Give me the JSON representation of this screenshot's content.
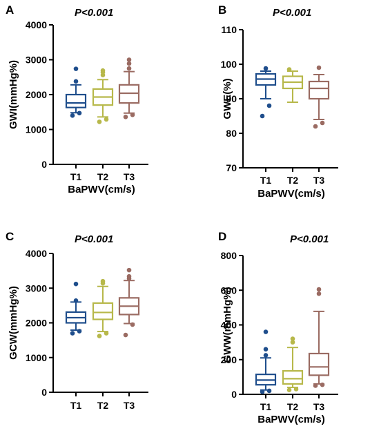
{
  "chart_data": [
    {
      "type": "box",
      "panel_label": "A",
      "title": "P<0.001",
      "ylabel": "GWI(mmHg%)",
      "xlabel": "BaPWV(cm/s)",
      "ylim": [
        0,
        4000
      ],
      "yticks": [
        0,
        1000,
        2000,
        3000,
        4000
      ],
      "categories": [
        "T1",
        "T2",
        "T3"
      ],
      "boxes": [
        {
          "name": "T1",
          "color": "#1f4e8c",
          "whisker_low": 1480,
          "q1": 1630,
          "median": 1760,
          "q3": 2000,
          "whisker_high": 2280,
          "outliers": [
            1400,
            1470,
            2380,
            2740
          ]
        },
        {
          "name": "T2",
          "color": "#b7b84a",
          "whisker_low": 1360,
          "q1": 1700,
          "median": 1930,
          "q3": 2160,
          "whisker_high": 2430,
          "outliers": [
            1220,
            1290,
            2560,
            2640,
            2690
          ]
        },
        {
          "name": "T3",
          "color": "#9a6b62",
          "whisker_low": 1470,
          "q1": 1760,
          "median": 2040,
          "q3": 2280,
          "whisker_high": 2660,
          "outliers": [
            1360,
            1420,
            2750,
            2890,
            3000
          ]
        }
      ]
    },
    {
      "type": "box",
      "panel_label": "B",
      "title": "P<0.001",
      "ylabel": "GWE(%)",
      "xlabel": "BaPWV(cm/s)",
      "ylim": [
        70,
        110
      ],
      "yticks": [
        70,
        80,
        90,
        100,
        110
      ],
      "categories": [
        "T1",
        "T2",
        "T3"
      ],
      "boxes": [
        {
          "name": "T1",
          "color": "#1f4e8c",
          "whisker_low": 90,
          "q1": 94,
          "median": 95.7,
          "q3": 97.2,
          "whisker_high": 98,
          "outliers": [
            85,
            88,
            98.8
          ]
        },
        {
          "name": "T2",
          "color": "#b7b84a",
          "whisker_low": 89,
          "q1": 93,
          "median": 94.8,
          "q3": 96.5,
          "whisker_high": 98,
          "outliers": [
            98.5
          ]
        },
        {
          "name": "T3",
          "color": "#9a6b62",
          "whisker_low": 84,
          "q1": 90,
          "median": 93,
          "q3": 95,
          "whisker_high": 97,
          "outliers": [
            82,
            83,
            99
          ]
        }
      ]
    },
    {
      "type": "box",
      "panel_label": "C",
      "title": "P<0.001",
      "ylabel": "GCW(mmHg%)",
      "xlabel": "",
      "ylim": [
        0,
        4000
      ],
      "yticks": [
        0,
        1000,
        2000,
        3000,
        4000
      ],
      "categories": [
        "T1",
        "T2",
        "T3"
      ],
      "boxes": [
        {
          "name": "T1",
          "color": "#1f4e8c",
          "whisker_low": 1790,
          "q1": 2000,
          "median": 2150,
          "q3": 2310,
          "whisker_high": 2600,
          "outliers": [
            1700,
            1760,
            2640,
            3120
          ]
        },
        {
          "name": "T2",
          "color": "#b7b84a",
          "whisker_low": 1750,
          "q1": 2100,
          "median": 2300,
          "q3": 2570,
          "whisker_high": 3050,
          "outliers": [
            1620,
            1700,
            3140,
            3200
          ]
        },
        {
          "name": "T3",
          "color": "#9a6b62",
          "whisker_low": 1980,
          "q1": 2240,
          "median": 2480,
          "q3": 2720,
          "whisker_high": 3220,
          "outliers": [
            1650,
            1950,
            3280,
            3340,
            3520
          ]
        }
      ]
    },
    {
      "type": "box",
      "panel_label": "D",
      "title": "P<0.001",
      "ylabel": "GWW(mmHg%)",
      "xlabel": "BaPWV(cm/s)",
      "ylim": [
        0,
        800
      ],
      "yticks": [
        0,
        200,
        400,
        600,
        800
      ],
      "categories": [
        "T1",
        "T2",
        "T3"
      ],
      "boxes": [
        {
          "name": "T1",
          "color": "#1f4e8c",
          "whisker_low": 25,
          "q1": 55,
          "median": 82,
          "q3": 115,
          "whisker_high": 210,
          "outliers": [
            15,
            20,
            225,
            260,
            360
          ]
        },
        {
          "name": "T2",
          "color": "#b7b84a",
          "whisker_low": 40,
          "q1": 60,
          "median": 90,
          "q3": 135,
          "whisker_high": 270,
          "outliers": [
            25,
            30,
            300,
            320
          ]
        },
        {
          "name": "T3",
          "color": "#9a6b62",
          "whisker_low": 60,
          "q1": 110,
          "median": 158,
          "q3": 235,
          "whisker_high": 478,
          "outliers": [
            50,
            55,
            580,
            605
          ]
        }
      ]
    }
  ]
}
